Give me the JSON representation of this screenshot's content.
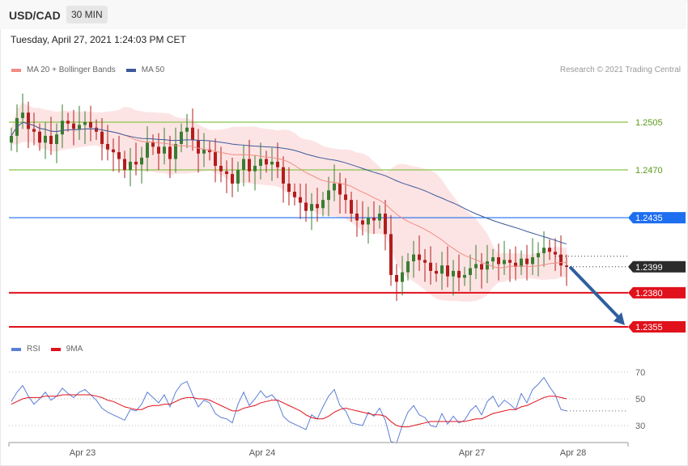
{
  "header": {
    "symbol": "USD/CAD",
    "timeframe": "30 MIN"
  },
  "datetime": "Tuesday, April 27, 2021 1:24:03 PM CET",
  "credit": "Research © 2021 Trading Central",
  "colors": {
    "ma20": "#f28b82",
    "ma50": "#3c5a99",
    "band": "#fde1e1",
    "resistance": "#8bc34a",
    "pivot": "#1e6ef0",
    "support": "#e0111b",
    "bull": "#3a7d32",
    "bear": "#b21d1d",
    "rsi": "#5b7fd6",
    "rsi_ma": "#e0111b",
    "arrow": "#2f5f9e"
  },
  "chart_data": [
    {
      "type": "candlestick",
      "legend": [
        {
          "name": "MA 20 + Bollinger Bands",
          "color": "#f28b82"
        },
        {
          "name": "MA 50",
          "color": "#3c5a99"
        }
      ],
      "x_ticks": [
        "Apr 23",
        "Apr 24",
        "Apr 27",
        "Apr 28"
      ],
      "ylim": [
        1.235,
        1.252
      ],
      "levels": [
        {
          "value": "1.2505",
          "kind": "resistance"
        },
        {
          "value": "1.2470",
          "kind": "resistance"
        },
        {
          "value": "1.2435",
          "kind": "pivot"
        },
        {
          "value": "1.2380",
          "kind": "support"
        },
        {
          "value": "1.2355",
          "kind": "support"
        }
      ],
      "last_price": "1.2399",
      "close": [
        1.2495,
        1.2508,
        1.2512,
        1.25,
        1.2498,
        1.249,
        1.2495,
        1.2489,
        1.2496,
        1.2506,
        1.2504,
        1.25,
        1.2503,
        1.2505,
        1.2501,
        1.2498,
        1.2489,
        1.2485,
        1.2483,
        1.2478,
        1.247,
        1.2476,
        1.2474,
        1.2479,
        1.249,
        1.2487,
        1.2482,
        1.2487,
        1.2478,
        1.2489,
        1.2498,
        1.2501,
        1.2492,
        1.2482,
        1.2485,
        1.2483,
        1.2473,
        1.2469,
        1.2467,
        1.246,
        1.247,
        1.2478,
        1.2469,
        1.2473,
        1.2478,
        1.2474,
        1.2476,
        1.2472,
        1.246,
        1.2454,
        1.245,
        1.2446,
        1.244,
        1.2445,
        1.2442,
        1.2448,
        1.2455,
        1.246,
        1.2452,
        1.2448,
        1.2438,
        1.2433,
        1.243,
        1.2435,
        1.2433,
        1.2438,
        1.2423,
        1.2393,
        1.2388,
        1.2395,
        1.2403,
        1.2408,
        1.2404,
        1.2402,
        1.2396,
        1.2394,
        1.24,
        1.2392,
        1.2396,
        1.2391,
        1.2393,
        1.2398,
        1.2401,
        1.2397,
        1.2403,
        1.2406,
        1.2401,
        1.2404,
        1.2402,
        1.2399,
        1.2405,
        1.2401,
        1.2406,
        1.2409,
        1.2413,
        1.241,
        1.2408,
        1.24,
        1.2399
      ],
      "bollinger": {
        "upper_last": 1.241,
        "lower_last": 1.239
      }
    },
    {
      "type": "line",
      "legend": [
        {
          "name": "RSI",
          "color": "#5b7fd6"
        },
        {
          "name": "9MA",
          "color": "#e0111b"
        }
      ],
      "y_ticks": [
        "70",
        "50",
        "30"
      ],
      "ylim": [
        15,
        80
      ],
      "series": [
        {
          "name": "RSI",
          "values": [
            48,
            55,
            60,
            52,
            46,
            50,
            55,
            49,
            52,
            58,
            54,
            51,
            55,
            57,
            53,
            49,
            43,
            40,
            38,
            36,
            34,
            42,
            41,
            46,
            55,
            51,
            47,
            53,
            44,
            55,
            61,
            63,
            53,
            44,
            49,
            47,
            39,
            36,
            35,
            32,
            46,
            55,
            45,
            50,
            56,
            51,
            53,
            48,
            37,
            33,
            31,
            29,
            27,
            38,
            35,
            44,
            52,
            57,
            45,
            41,
            32,
            31,
            30,
            40,
            37,
            43,
            34,
            18,
            17,
            30,
            40,
            45,
            38,
            36,
            30,
            29,
            39,
            31,
            37,
            32,
            34,
            41,
            45,
            38,
            48,
            52,
            44,
            49,
            46,
            42,
            54,
            47,
            57,
            61,
            66,
            59,
            53,
            42,
            41
          ]
        },
        {
          "name": "9MA",
          "values": [
            46,
            48,
            50,
            51,
            51,
            51,
            52,
            52,
            52,
            53,
            53,
            53,
            53,
            53,
            53,
            52,
            51,
            49,
            48,
            46,
            44,
            43,
            42,
            42,
            44,
            45,
            45,
            46,
            46,
            48,
            50,
            51,
            51,
            50,
            50,
            49,
            47,
            45,
            43,
            41,
            41,
            43,
            44,
            45,
            47,
            48,
            49,
            49,
            47,
            45,
            43,
            41,
            38,
            36,
            35,
            35,
            37,
            40,
            42,
            43,
            42,
            41,
            40,
            39,
            38,
            38,
            37,
            33,
            30,
            29,
            29,
            30,
            31,
            32,
            33,
            33,
            33,
            33,
            33,
            33,
            33,
            34,
            35,
            35,
            37,
            39,
            40,
            41,
            42,
            42,
            44,
            45,
            47,
            49,
            51,
            52,
            52,
            51,
            50
          ]
        }
      ]
    }
  ]
}
